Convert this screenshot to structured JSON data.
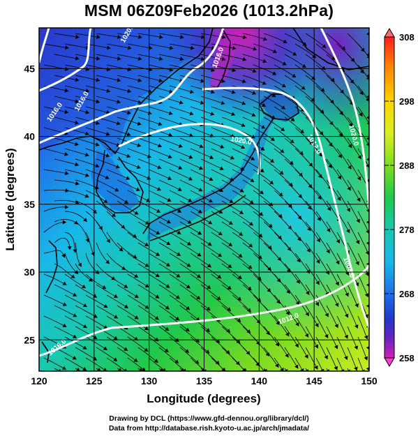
{
  "title": "MSM 06Z09Feb2026 (1013.2hPa)",
  "axes": {
    "xlabel": "Longitude (degrees)",
    "ylabel": "Latitude (degrees)",
    "xticks": [
      "120",
      "125",
      "130",
      "135",
      "140",
      "145",
      "150"
    ],
    "yticks": [
      "25",
      "30",
      "35",
      "40",
      "45"
    ]
  },
  "colorbar": {
    "labels": [
      "308",
      "298",
      "288",
      "278",
      "268",
      "258"
    ],
    "colors": [
      "#ff2020",
      "#ff8a00",
      "#ffd400",
      "#d8ef20",
      "#7fdc20",
      "#20c84a",
      "#18c8b0",
      "#18b8e8",
      "#1f6ee8",
      "#2238c8",
      "#6a22c0",
      "#d020b8",
      "#ff3ad0"
    ]
  },
  "contour_labels": [
    "1016.0",
    "1016.0",
    "1020.0",
    "1016.0",
    "1012.0",
    "1008.0",
    "1012.0",
    "1016.0",
    "1020.0",
    "1020.0"
  ],
  "credits": {
    "line1": "Drawing by DCL (https://www.gfd-dennou.org/library/dcl/)",
    "line2": "Data from http://database.rish.kyoto-u.ac.jp/arch/jmadata/"
  }
}
